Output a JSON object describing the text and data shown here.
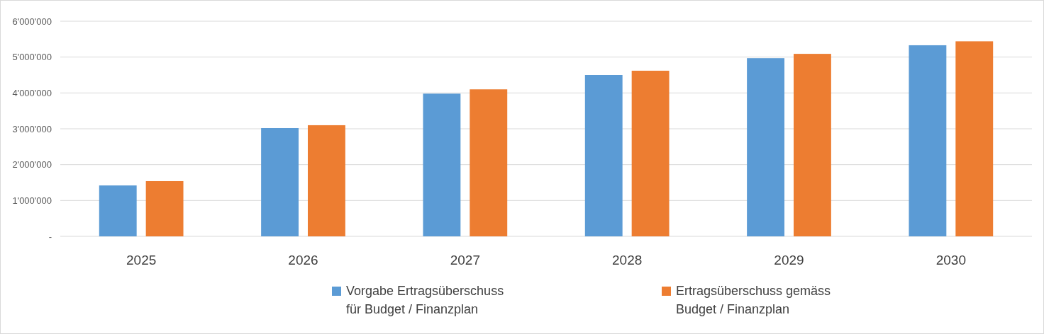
{
  "chart_data": {
    "type": "bar",
    "categories": [
      "2025",
      "2026",
      "2027",
      "2028",
      "2029",
      "2030"
    ],
    "series": [
      {
        "name": "Vorgabe Ertragsüberschuss für Budget / Finanzplan",
        "color": "#5b9bd5",
        "values": [
          1420000,
          3020000,
          3980000,
          4500000,
          4970000,
          5330000
        ]
      },
      {
        "name": "Ertragsüberschuss gemäss Budget / Finanzplan",
        "color": "#ed7d31",
        "values": [
          1540000,
          3100000,
          4100000,
          4620000,
          5090000,
          5440000
        ]
      }
    ],
    "ylim": [
      0,
      6000000
    ],
    "yticks": [
      {
        "value": 0,
        "label": "-"
      },
      {
        "value": 1000000,
        "label": "1'000'000"
      },
      {
        "value": 2000000,
        "label": "2'000'000"
      },
      {
        "value": 3000000,
        "label": "3'000'000"
      },
      {
        "value": 4000000,
        "label": "4'000'000"
      },
      {
        "value": 5000000,
        "label": "5'000'000"
      },
      {
        "value": 6000000,
        "label": "6'000'000"
      }
    ],
    "grid": "y",
    "legend": "bottom"
  }
}
